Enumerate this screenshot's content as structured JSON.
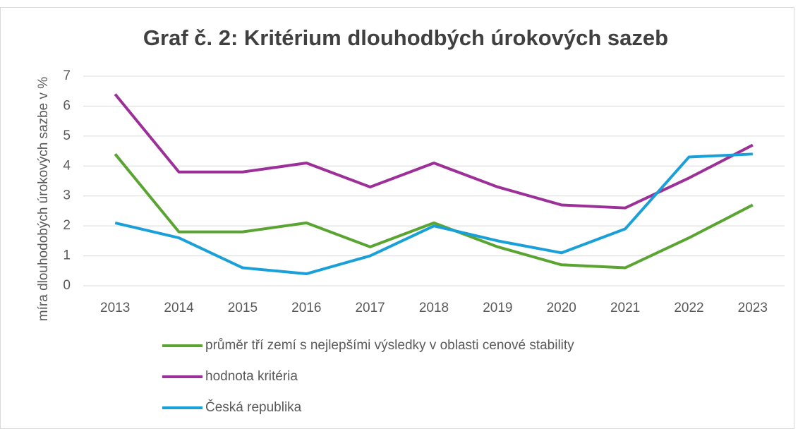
{
  "chart_data": {
    "type": "line",
    "title": "Graf č. 2: Kritérium dlouhodbých úrokových sazeb",
    "y_label": "míra dlouhodobých úrokových sazbe v %",
    "categories": [
      "2013",
      "2014",
      "2015",
      "2016",
      "2017",
      "2018",
      "2019",
      "2020",
      "2021",
      "2022",
      "2023"
    ],
    "series": [
      {
        "name": "průměr tří zemí s nejlepšími výsledky v oblasti cenové stability",
        "color": "#5aa532",
        "values": [
          4.4,
          1.8,
          1.8,
          2.1,
          1.3,
          2.1,
          1.3,
          0.7,
          0.6,
          1.6,
          2.7
        ]
      },
      {
        "name": "hodnota kritéria",
        "color": "#9c2f98",
        "values": [
          6.4,
          3.8,
          3.8,
          4.1,
          3.3,
          4.1,
          3.3,
          2.7,
          2.6,
          3.6,
          4.7
        ]
      },
      {
        "name": "Česká republika",
        "color": "#1aa0d8",
        "values": [
          2.1,
          1.6,
          0.6,
          0.4,
          1.0,
          2.0,
          1.5,
          1.1,
          1.9,
          4.3,
          4.4
        ]
      }
    ],
    "ylim": [
      0,
      7
    ],
    "yticks": [
      0,
      1,
      2,
      3,
      4,
      5,
      6,
      7
    ],
    "grid": true,
    "legend": "bottom"
  }
}
